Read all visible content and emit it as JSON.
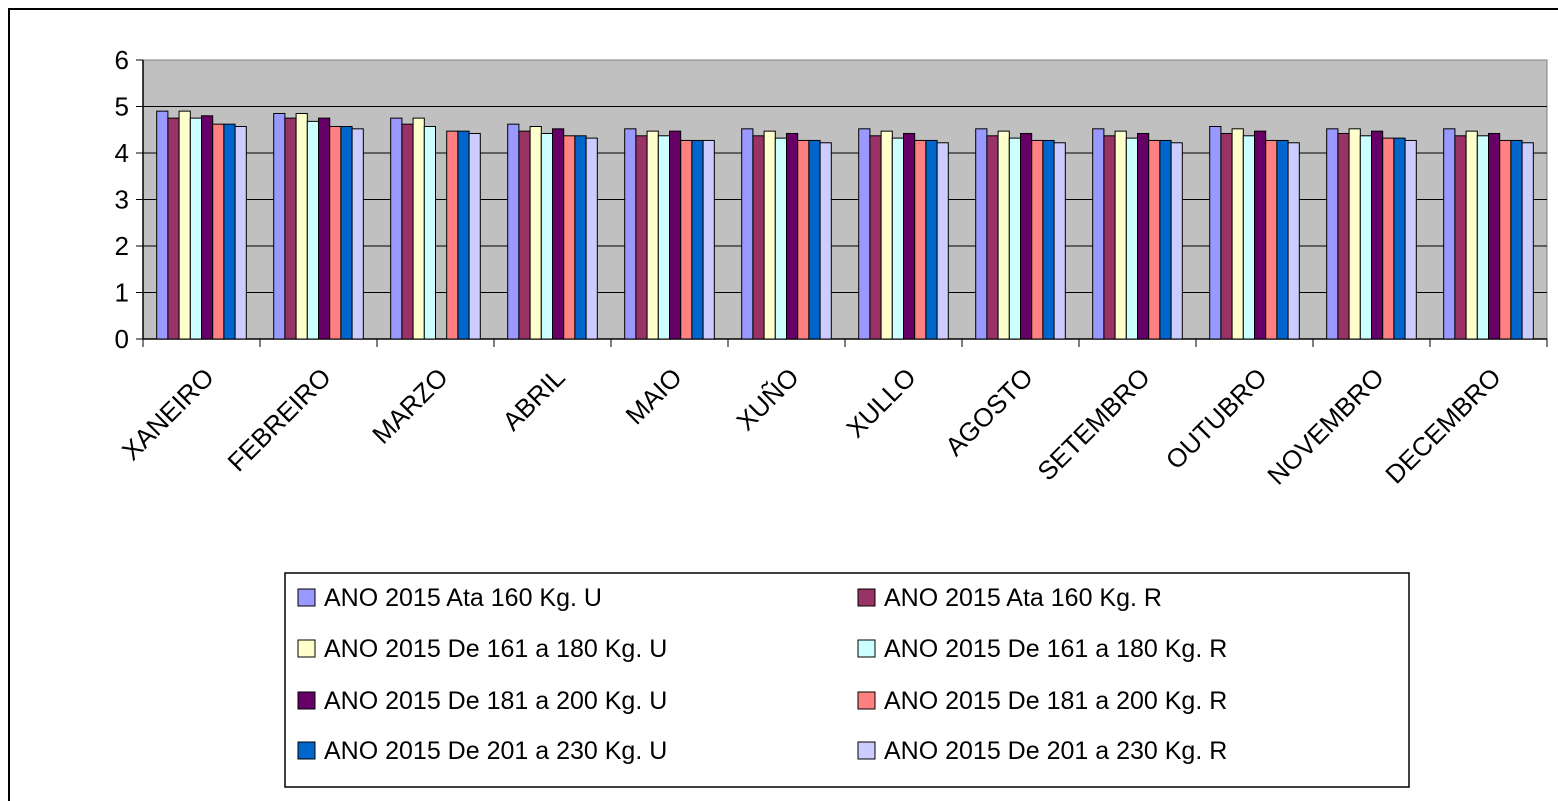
{
  "chart_data": {
    "type": "bar",
    "categories": [
      "XANEIRO",
      "FEBREIRO",
      "MARZO",
      "ABRIL",
      "MAIO",
      "XUÑO",
      "XULLO",
      "AGOSTO",
      "SETEMBRO",
      "OUTUBRO",
      "NOVEMBRO",
      "DECEMBRO"
    ],
    "ylim": [
      0,
      6
    ],
    "yticks": [
      "0",
      "1",
      "2",
      "3",
      "4",
      "5",
      "6"
    ],
    "grid": true,
    "legend_position": "bottom",
    "plot_background": "#c0c0c0",
    "series": [
      {
        "name": "ANO 2015 Ata 160 Kg. U",
        "color": "#9999ff",
        "values": [
          4.9,
          4.85,
          4.75,
          4.62,
          4.52,
          4.52,
          4.52,
          4.52,
          4.52,
          4.57,
          4.52,
          4.52
        ]
      },
      {
        "name": "ANO 2015 Ata 160 Kg. R",
        "color": "#993366",
        "values": [
          4.75,
          4.75,
          4.62,
          4.47,
          4.37,
          4.37,
          4.37,
          4.37,
          4.37,
          4.42,
          4.42,
          4.37
        ]
      },
      {
        "name": "ANO 2015 De 161 a 180 Kg. U",
        "color": "#ffffcc",
        "values": [
          4.9,
          4.85,
          4.75,
          4.57,
          4.47,
          4.47,
          4.47,
          4.47,
          4.47,
          4.52,
          4.52,
          4.47
        ]
      },
      {
        "name": "ANO 2015 De 161 a 180 Kg. R",
        "color": "#ccffff",
        "values": [
          4.75,
          4.68,
          4.57,
          4.42,
          4.37,
          4.32,
          4.32,
          4.32,
          4.32,
          4.37,
          4.37,
          4.37
        ]
      },
      {
        "name": "ANO 2015 De 181 a 200 Kg. U",
        "color": "#660066",
        "values": [
          4.8,
          4.75,
          null,
          4.52,
          4.47,
          4.42,
          4.42,
          4.42,
          4.42,
          4.47,
          4.47,
          4.42
        ]
      },
      {
        "name": "ANO 2015 De 181 a 200 Kg. R",
        "color": "#ff8080",
        "values": [
          4.62,
          4.57,
          4.47,
          4.37,
          4.27,
          4.27,
          4.27,
          4.27,
          4.27,
          4.27,
          4.32,
          4.27
        ]
      },
      {
        "name": "ANO 2015 De 201 a 230 Kg. U",
        "color": "#0066cc",
        "values": [
          4.62,
          4.57,
          4.47,
          4.37,
          4.27,
          4.27,
          4.27,
          4.27,
          4.27,
          4.27,
          4.32,
          4.27
        ]
      },
      {
        "name": "ANO 2015 De 201 a 230 Kg. R",
        "color": "#ccccff",
        "values": [
          4.57,
          4.52,
          4.42,
          4.32,
          4.27,
          4.22,
          4.22,
          4.22,
          4.22,
          4.22,
          4.27,
          4.22
        ]
      }
    ]
  }
}
